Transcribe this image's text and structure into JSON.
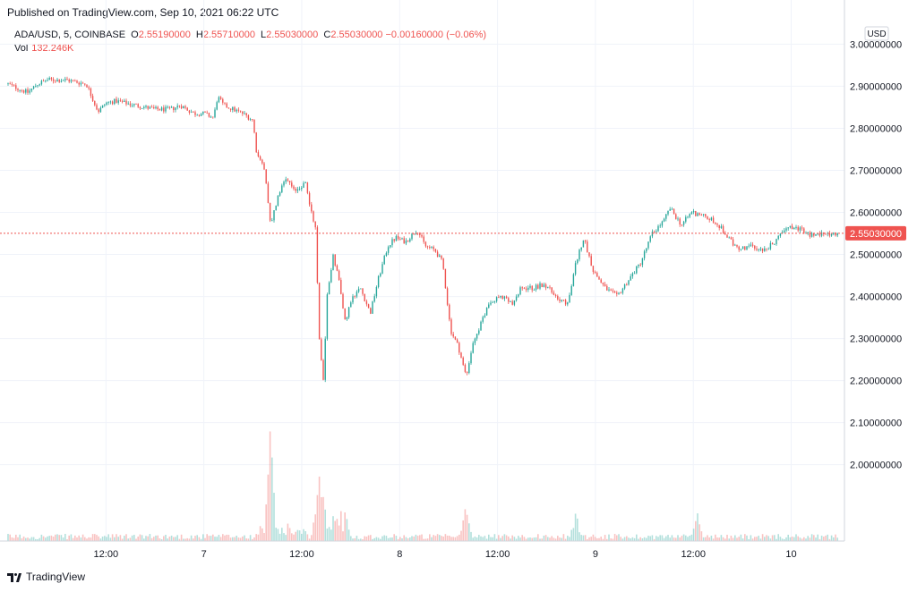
{
  "header": {
    "published": "Published on TradingView.com, Sep 10, 2021 06:22 UTC"
  },
  "legend": {
    "symbol": "ADA/USD, 5, COINBASE",
    "open_label": "O",
    "open": "2.55190000",
    "high_label": "H",
    "high": "2.55710000",
    "low_label": "L",
    "low": "2.55030000",
    "close_label": "C",
    "close": "2.55030000",
    "change": "−0.00160000 (−0.06%)",
    "vol_label": "Vol",
    "vol": "132.246K"
  },
  "currency": "USD",
  "last_price_label": "2.55030000",
  "footer": {
    "brand": "TradingView"
  },
  "colors": {
    "up": "#26a69a",
    "down": "#ef5350",
    "grid": "#f0f3fa",
    "axis_text": "#131722"
  },
  "chart_data": {
    "type": "candlestick",
    "title": "ADA/USD, 5, COINBASE",
    "xlabel": "",
    "ylabel": "",
    "ylim": [
      1.91,
      3.02
    ],
    "y_ticks": [
      "2.00000000",
      "2.10000000",
      "2.20000000",
      "2.30000000",
      "2.40000000",
      "2.50000000",
      "2.60000000",
      "2.70000000",
      "2.80000000",
      "2.90000000",
      "3.00000000"
    ],
    "x_ticks": [
      {
        "label": "12:00",
        "t": 0.5
      },
      {
        "label": "7",
        "t": 1.0
      },
      {
        "label": "12:00",
        "t": 1.5
      },
      {
        "label": "8",
        "t": 2.0
      },
      {
        "label": "12:00",
        "t": 2.5
      },
      {
        "label": "9",
        "t": 3.0
      },
      {
        "label": "12:00",
        "t": 3.5
      },
      {
        "label": "10",
        "t": 4.0
      }
    ],
    "x_range_days": [
      0.0,
      4.24
    ],
    "last_price": 2.5503,
    "grid": true,
    "price_path": [
      [
        0.0,
        2.905
      ],
      [
        0.05,
        2.895
      ],
      [
        0.1,
        2.885
      ],
      [
        0.15,
        2.905
      ],
      [
        0.2,
        2.915
      ],
      [
        0.3,
        2.915
      ],
      [
        0.4,
        2.905
      ],
      [
        0.46,
        2.84
      ],
      [
        0.5,
        2.86
      ],
      [
        0.55,
        2.865
      ],
      [
        0.65,
        2.855
      ],
      [
        0.75,
        2.845
      ],
      [
        0.83,
        2.845
      ],
      [
        0.88,
        2.855
      ],
      [
        0.95,
        2.835
      ],
      [
        1.0,
        2.835
      ],
      [
        1.05,
        2.825
      ],
      [
        1.07,
        2.875
      ],
      [
        1.1,
        2.855
      ],
      [
        1.2,
        2.835
      ],
      [
        1.25,
        2.82
      ],
      [
        1.27,
        2.74
      ],
      [
        1.31,
        2.7
      ],
      [
        1.34,
        2.57
      ],
      [
        1.38,
        2.64
      ],
      [
        1.42,
        2.68
      ],
      [
        1.46,
        2.65
      ],
      [
        1.52,
        2.67
      ],
      [
        1.55,
        2.6
      ],
      [
        1.57,
        2.56
      ],
      [
        1.59,
        2.3
      ],
      [
        1.61,
        2.2
      ],
      [
        1.63,
        2.4
      ],
      [
        1.66,
        2.5
      ],
      [
        1.69,
        2.44
      ],
      [
        1.72,
        2.34
      ],
      [
        1.76,
        2.4
      ],
      [
        1.8,
        2.42
      ],
      [
        1.85,
        2.36
      ],
      [
        1.89,
        2.44
      ],
      [
        1.94,
        2.52
      ],
      [
        1.98,
        2.54
      ],
      [
        2.03,
        2.53
      ],
      [
        2.09,
        2.56
      ],
      [
        2.13,
        2.52
      ],
      [
        2.18,
        2.51
      ],
      [
        2.22,
        2.48
      ],
      [
        2.26,
        2.32
      ],
      [
        2.3,
        2.28
      ],
      [
        2.34,
        2.21
      ],
      [
        2.38,
        2.3
      ],
      [
        2.42,
        2.34
      ],
      [
        2.46,
        2.39
      ],
      [
        2.52,
        2.4
      ],
      [
        2.58,
        2.38
      ],
      [
        2.62,
        2.42
      ],
      [
        2.68,
        2.42
      ],
      [
        2.74,
        2.43
      ],
      [
        2.8,
        2.4
      ],
      [
        2.86,
        2.38
      ],
      [
        2.9,
        2.48
      ],
      [
        2.94,
        2.54
      ],
      [
        2.99,
        2.46
      ],
      [
        3.05,
        2.42
      ],
      [
        3.11,
        2.4
      ],
      [
        3.17,
        2.44
      ],
      [
        3.23,
        2.48
      ],
      [
        3.29,
        2.55
      ],
      [
        3.35,
        2.58
      ],
      [
        3.38,
        2.61
      ],
      [
        3.44,
        2.57
      ],
      [
        3.49,
        2.6
      ],
      [
        3.53,
        2.595
      ],
      [
        3.58,
        2.585
      ],
      [
        3.62,
        2.575
      ],
      [
        3.67,
        2.545
      ],
      [
        3.73,
        2.51
      ],
      [
        3.79,
        2.52
      ],
      [
        3.86,
        2.51
      ],
      [
        3.92,
        2.53
      ],
      [
        3.98,
        2.57
      ],
      [
        4.04,
        2.56
      ],
      [
        4.1,
        2.545
      ],
      [
        4.16,
        2.55
      ],
      [
        4.22,
        2.5503
      ]
    ],
    "volume_spikes": [
      {
        "t": 1.34,
        "rel": 0.86
      },
      {
        "t": 1.59,
        "rel": 0.46
      },
      {
        "t": 1.61,
        "rel": 0.3
      },
      {
        "t": 2.34,
        "rel": 0.23
      },
      {
        "t": 3.52,
        "rel": 0.19
      },
      {
        "t": 2.9,
        "rel": 0.17
      }
    ]
  }
}
